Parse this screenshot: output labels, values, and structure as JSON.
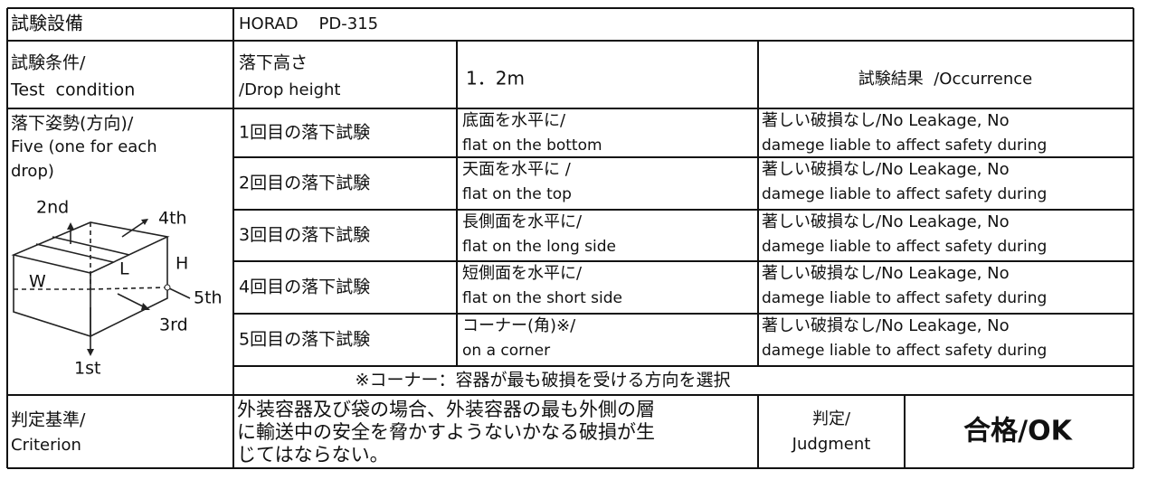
{
  "header": {
    "label": "試験設備",
    "equipment": "HORAD    PD-315"
  },
  "condition": {
    "label": [
      "試験条件/",
      "Test  condition"
    ],
    "drop_height_label": [
      "落下高さ",
      "/Drop height"
    ],
    "drop_height": "1．2m",
    "results_header": "試験結果  /Occurrence"
  },
  "posture": {
    "label": [
      "落下姿勢(方向)/",
      "Five (one for each",
      "drop)"
    ],
    "diagram": [
      "2nd",
      "4th",
      "W",
      "L",
      "H",
      "5th",
      "3rd",
      "1st"
    ]
  },
  "drops": [
    {
      "name": "1回目の落下試験",
      "orientation": [
        "底面を水平に/",
        "flat on the bottom"
      ],
      "result": [
        "著しい破損なし/No Leakage, No",
        "damege liable to affect safety during"
      ]
    },
    {
      "name": "2回目の落下試験",
      "orientation": [
        "天面を水平に /",
        "flat on the top"
      ],
      "result": [
        "著しい破損なし/No Leakage, No",
        "damege liable to affect safety during"
      ]
    },
    {
      "name": "3回目の落下試験",
      "orientation": [
        "長側面を水平に/",
        "flat on the long side"
      ],
      "result": [
        "著しい破損なし/No Leakage, No",
        "damege liable to affect safety during"
      ]
    },
    {
      "name": "4回目の落下試験",
      "orientation": [
        "短側面を水平に/",
        "flat on the short side"
      ],
      "result": [
        "著しい破損なし/No Leakage, No",
        "damege liable to affect safety during"
      ]
    },
    {
      "name": "5回目の落下試験",
      "orientation": [
        "コーナー(角)※/",
        "on a corner"
      ],
      "result": [
        "著しい破損なし/No Leakage, No",
        "damege liable to affect safety during"
      ]
    }
  ],
  "note": "※コーナー：容器が最も破損を受ける方向を選択",
  "criterion": {
    "label": [
      "判定基準/",
      "Criterion"
    ],
    "text": [
      "外装容器及び袋の場合、外装容器の最も外側の層",
      "に輸送中の安全を脅かすようないかなる破損が生",
      "じてはならない。"
    ],
    "judgment_label": [
      "判定/",
      "Judgment"
    ],
    "judgment": "合格/OK"
  }
}
